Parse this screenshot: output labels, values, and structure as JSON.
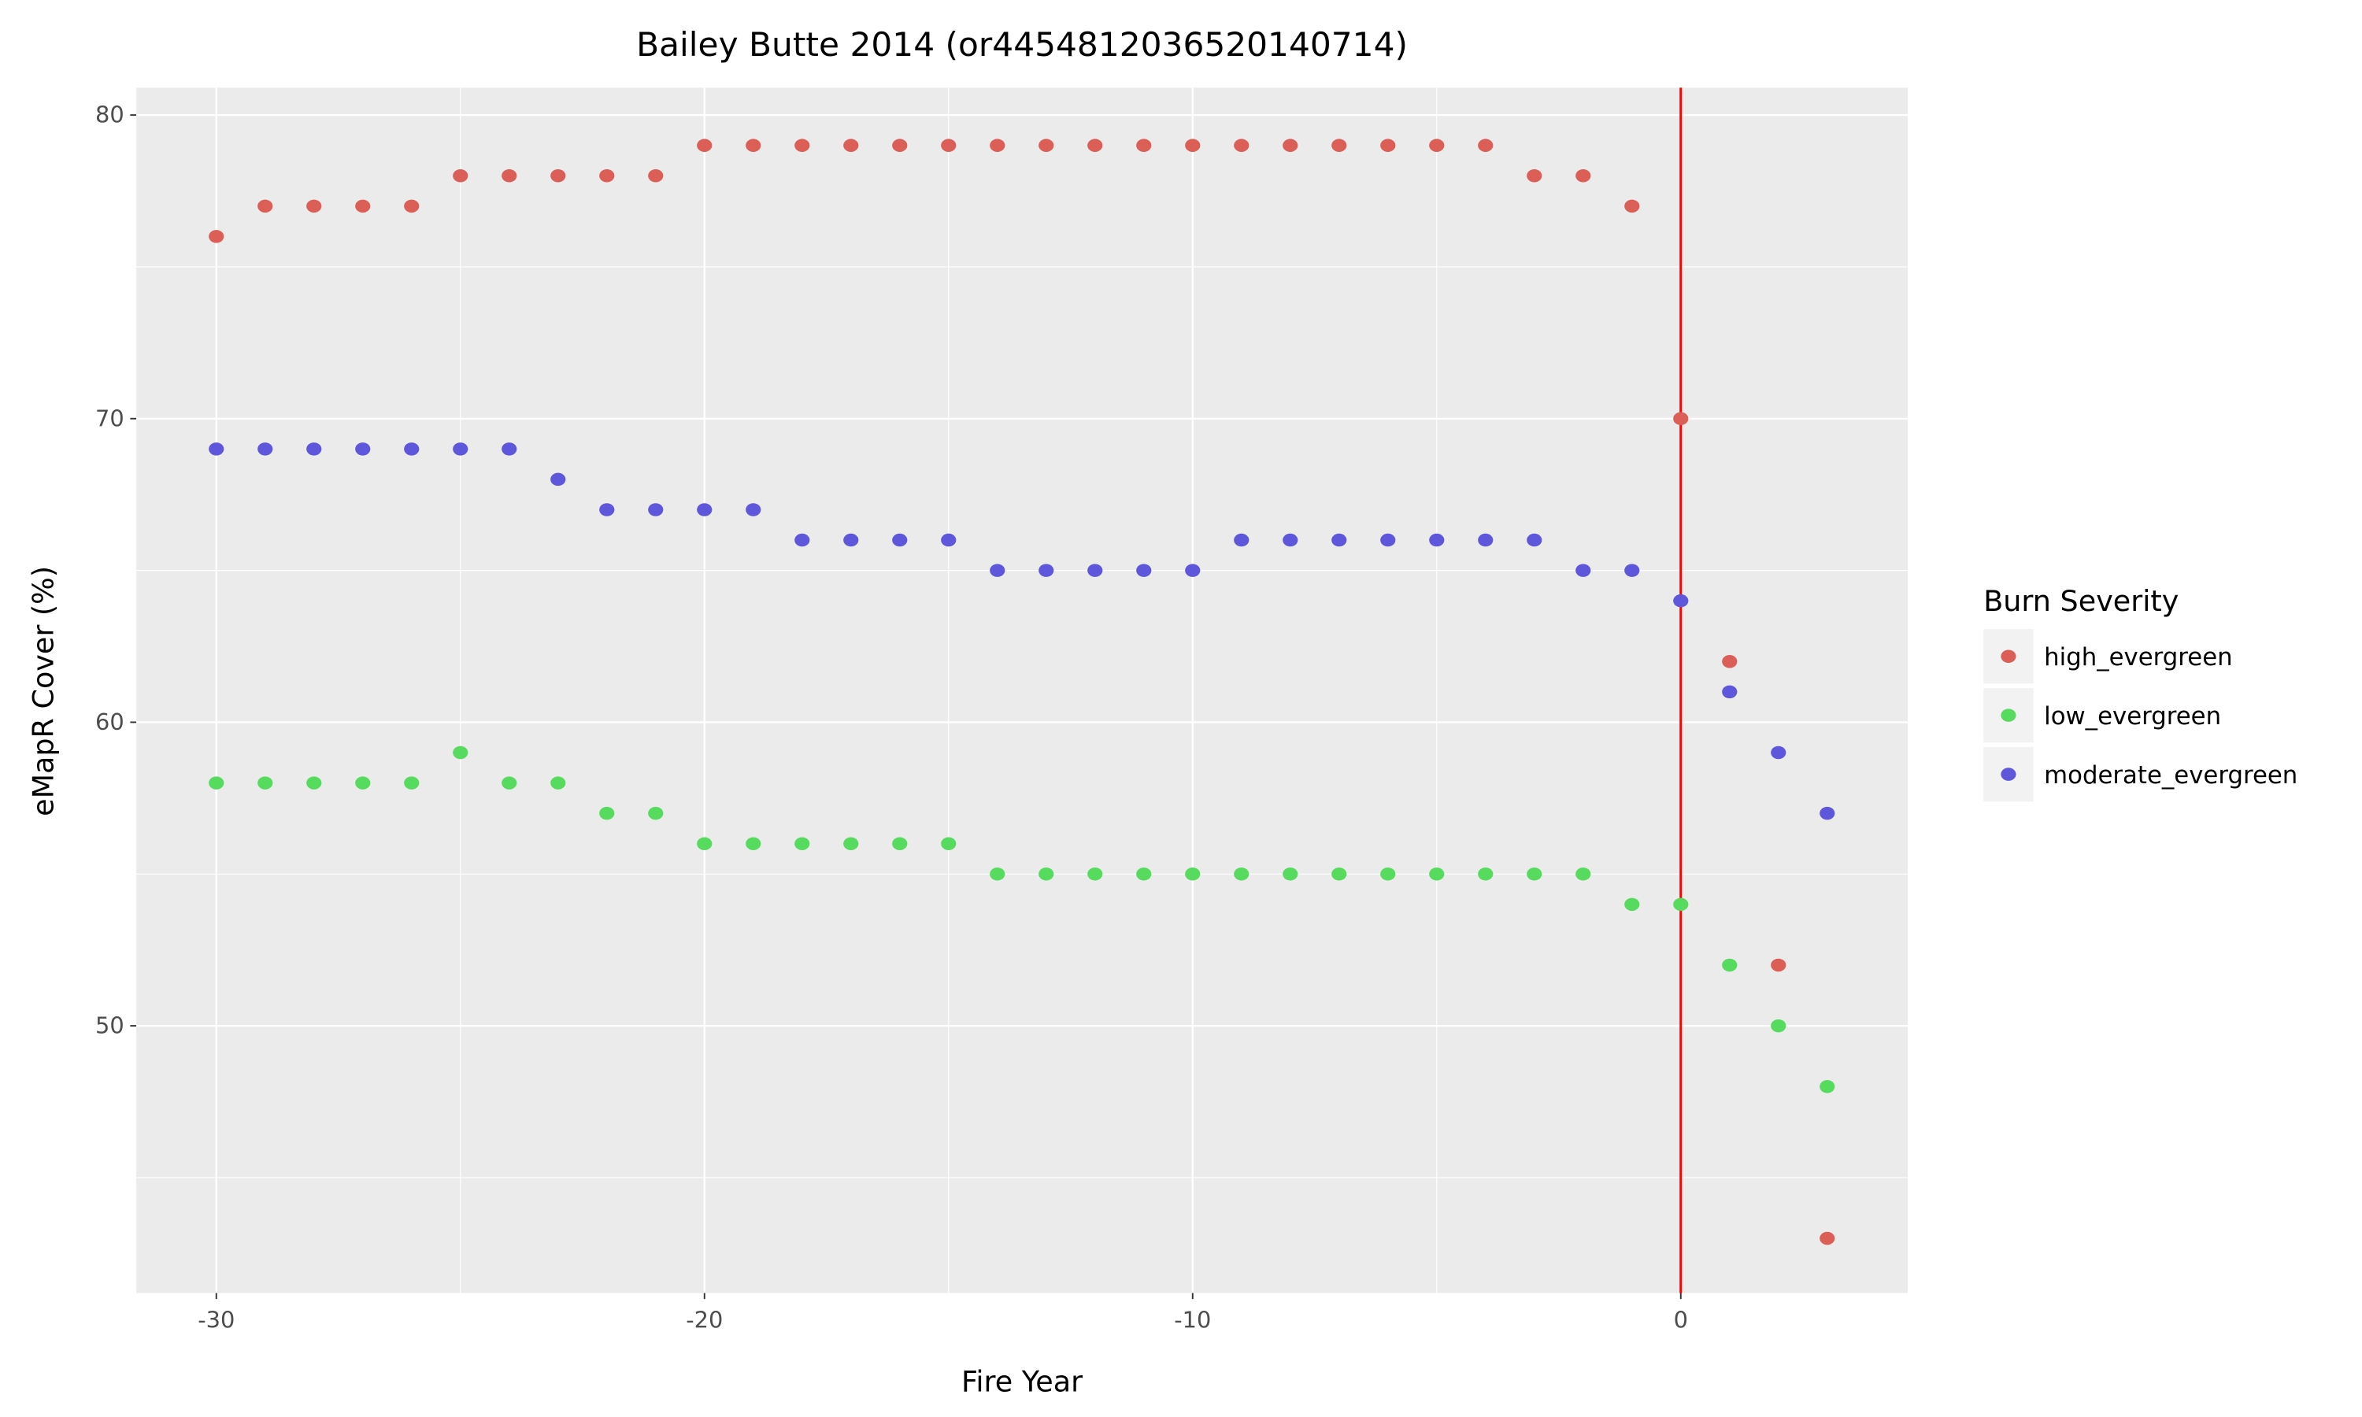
{
  "chart_data": {
    "type": "scatter",
    "title": "Bailey Butte 2014 (or4454812036520140714)",
    "xlabel": "Fire Year",
    "ylabel": "eMapR Cover (%)",
    "xlim": [
      -31.64,
      4.65
    ],
    "ylim": [
      41.2,
      80.9
    ],
    "xticks": [
      -30,
      -20,
      -10,
      0
    ],
    "yticks": [
      50,
      60,
      70,
      80
    ],
    "grid": true,
    "vline": {
      "x": 0,
      "color": "#ff0000"
    },
    "legend": {
      "title": "Burn Severity",
      "placement": "right"
    },
    "series": [
      {
        "name": "high_evergreen",
        "color": "#db5f57",
        "x": [
          -30,
          -29,
          -28,
          -27,
          -26,
          -25,
          -24,
          -23,
          -22,
          -21,
          -20,
          -19,
          -18,
          -17,
          -16,
          -15,
          -14,
          -13,
          -12,
          -11,
          -10,
          -9,
          -8,
          -7,
          -6,
          -5,
          -4,
          -3,
          -2,
          -1,
          0,
          1,
          2,
          3
        ],
        "y": [
          76,
          77,
          77,
          77,
          77,
          78,
          78,
          78,
          78,
          78,
          79,
          79,
          79,
          79,
          79,
          79,
          79,
          79,
          79,
          79,
          79,
          79,
          79,
          79,
          79,
          79,
          79,
          78,
          78,
          77,
          70,
          62,
          52,
          43
        ]
      },
      {
        "name": "low_evergreen",
        "color": "#57db5f",
        "x": [
          -30,
          -29,
          -28,
          -27,
          -26,
          -25,
          -24,
          -23,
          -22,
          -21,
          -20,
          -19,
          -18,
          -17,
          -16,
          -15,
          -14,
          -13,
          -12,
          -11,
          -10,
          -9,
          -8,
          -7,
          -6,
          -5,
          -4,
          -3,
          -2,
          -1,
          0,
          1,
          2,
          3
        ],
        "y": [
          58,
          58,
          58,
          58,
          58,
          59,
          58,
          58,
          57,
          57,
          56,
          56,
          56,
          56,
          56,
          56,
          55,
          55,
          55,
          55,
          55,
          55,
          55,
          55,
          55,
          55,
          55,
          55,
          55,
          54,
          54,
          52,
          50,
          48
        ]
      },
      {
        "name": "moderate_evergreen",
        "color": "#5f57db",
        "x": [
          -30,
          -29,
          -28,
          -27,
          -26,
          -25,
          -24,
          -23,
          -22,
          -21,
          -20,
          -19,
          -18,
          -17,
          -16,
          -15,
          -14,
          -13,
          -12,
          -11,
          -10,
          -9,
          -8,
          -7,
          -6,
          -5,
          -4,
          -3,
          -2,
          -1,
          0,
          1,
          2,
          3
        ],
        "y": [
          69,
          69,
          69,
          69,
          69,
          69,
          69,
          68,
          67,
          67,
          67,
          67,
          66,
          66,
          66,
          66,
          65,
          65,
          65,
          65,
          65,
          66,
          66,
          66,
          66,
          66,
          66,
          66,
          65,
          65,
          64,
          61,
          59,
          57
        ]
      }
    ]
  }
}
